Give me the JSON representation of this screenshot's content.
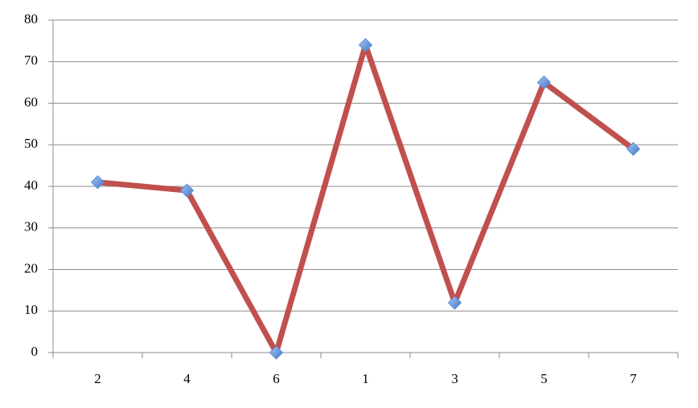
{
  "chart_data": {
    "type": "line",
    "categories": [
      "2",
      "4",
      "6",
      "1",
      "3",
      "5",
      "7"
    ],
    "values": [
      41,
      39,
      0,
      74,
      12,
      65,
      49
    ],
    "color": "#c0504d",
    "marker_color": "#5b8fd6",
    "ylim": [
      0,
      80
    ],
    "yticks": [
      0,
      10,
      20,
      30,
      40,
      50,
      60,
      70,
      80
    ],
    "grid": true
  }
}
